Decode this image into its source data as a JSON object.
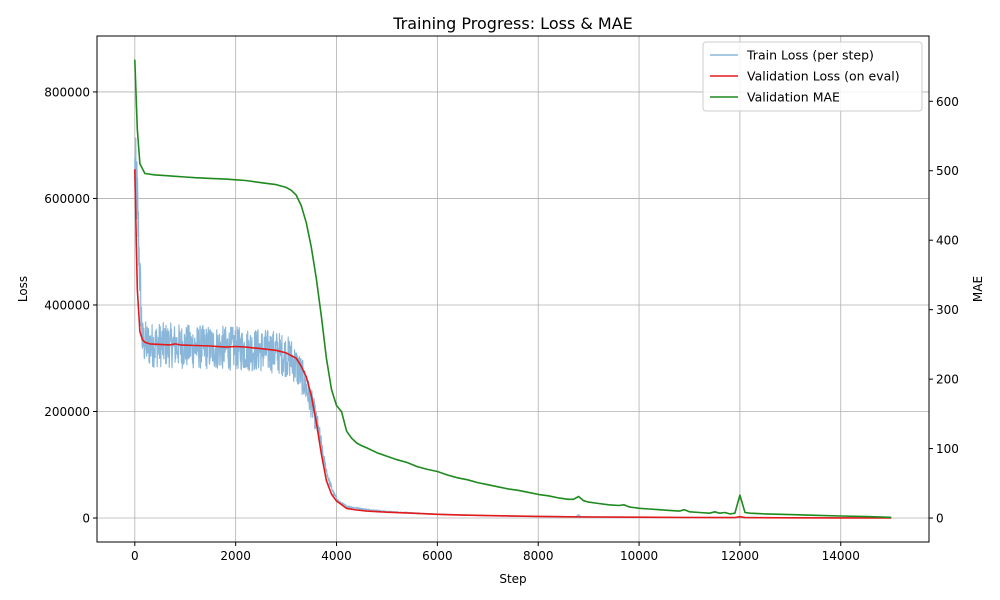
{
  "chart_data": {
    "type": "line",
    "title": "Training Progress: Loss & MAE",
    "xlabel": "Step",
    "ylabel_left": "Loss",
    "ylabel_right": "MAE",
    "xlim": [
      -750,
      15750
    ],
    "ylim_left": [
      -45000,
      905000
    ],
    "ylim_right": [
      -34.5,
      694
    ],
    "x_ticks": [
      0,
      2000,
      4000,
      6000,
      8000,
      10000,
      12000,
      14000
    ],
    "y_left_ticks": [
      0,
      200000,
      400000,
      600000,
      800000
    ],
    "y_right_ticks": [
      0,
      100,
      200,
      300,
      400,
      500,
      600
    ],
    "grid": true,
    "legend_position": "upper right",
    "colors": {
      "train_loss": "#8ab7d9",
      "val_loss": "#e31a1c",
      "val_mae": "#1f8a1f"
    },
    "series": [
      {
        "name": "Train Loss (per step)",
        "axis": "left",
        "style": "noisy",
        "x": [
          0,
          50,
          100,
          150,
          300,
          600,
          1000,
          1500,
          2000,
          2500,
          2800,
          3100,
          3300,
          3450,
          3550,
          3650,
          3750,
          3850,
          3950,
          4050,
          4200,
          4500,
          5000,
          6000,
          7000,
          8000,
          8750,
          8800,
          8850,
          10000,
          12000,
          13000,
          15000
        ],
        "values": [
          650000,
          600000,
          450000,
          330000,
          325000,
          325000,
          322000,
          320000,
          318000,
          315000,
          312000,
          300000,
          270000,
          230000,
          200000,
          160000,
          110000,
          70000,
          45000,
          30000,
          22000,
          17000,
          12000,
          7000,
          4500,
          3000,
          2500,
          6000,
          2500,
          1500,
          1000,
          700,
          500
        ]
      },
      {
        "name": "Validation Loss (on eval)",
        "axis": "left",
        "x": [
          0,
          50,
          100,
          150,
          200,
          300,
          500,
          700,
          800,
          900,
          1200,
          1500,
          1800,
          2000,
          2200,
          2400,
          2600,
          2800,
          3000,
          3100,
          3200,
          3300,
          3400,
          3500,
          3600,
          3700,
          3800,
          3900,
          4000,
          4100,
          4200,
          4400,
          4600,
          5000,
          5500,
          6000,
          6500,
          7000,
          8000,
          9000,
          10000,
          11000,
          11900,
          12000,
          12100,
          13000,
          14000,
          15000
        ],
        "values": [
          655000,
          430000,
          350000,
          335000,
          330000,
          327000,
          326000,
          325000,
          327000,
          325000,
          324000,
          323000,
          321000,
          322000,
          321000,
          319000,
          317000,
          315000,
          310000,
          305000,
          300000,
          285000,
          265000,
          230000,
          180000,
          120000,
          70000,
          45000,
          32000,
          25000,
          18000,
          15000,
          13000,
          11000,
          9000,
          7000,
          5500,
          4500,
          3000,
          2000,
          1500,
          1000,
          800,
          2500,
          800,
          500,
          300,
          200
        ]
      },
      {
        "name": "Validation MAE",
        "axis": "right",
        "x": [
          0,
          50,
          100,
          200,
          400,
          600,
          800,
          1000,
          1200,
          1500,
          1800,
          2000,
          2200,
          2400,
          2600,
          2800,
          3000,
          3100,
          3200,
          3300,
          3400,
          3500,
          3600,
          3700,
          3800,
          3900,
          4000,
          4100,
          4200,
          4300,
          4400,
          4500,
          4600,
          4800,
          5000,
          5200,
          5400,
          5600,
          5800,
          6000,
          6200,
          6400,
          6600,
          6800,
          7000,
          7200,
          7400,
          7600,
          7800,
          8000,
          8200,
          8400,
          8600,
          8700,
          8800,
          8900,
          9000,
          9200,
          9400,
          9600,
          9700,
          9800,
          10000,
          10200,
          10400,
          10600,
          10800,
          10900,
          11000,
          11200,
          11400,
          11500,
          11600,
          11700,
          11800,
          11900,
          12000,
          12100,
          12200,
          12500,
          13000,
          13500,
          14000,
          14500,
          15000
        ],
        "values": [
          660,
          560,
          510,
          496,
          494,
          493,
          492,
          491,
          490,
          489,
          488,
          487,
          486,
          484,
          482,
          480,
          476,
          472,
          465,
          450,
          425,
          390,
          345,
          290,
          230,
          185,
          162,
          153,
          125,
          115,
          108,
          104,
          101,
          94,
          89,
          84,
          80,
          74,
          70,
          67,
          62,
          58,
          55,
          51,
          48,
          45,
          42,
          40,
          37,
          34,
          32,
          29,
          27,
          27,
          31,
          25,
          23,
          21,
          19,
          18,
          19,
          16,
          14,
          13,
          12,
          11,
          10,
          12,
          9,
          8,
          7,
          9,
          7,
          8,
          6,
          7,
          33,
          8,
          7,
          6,
          5,
          4,
          3,
          2,
          1
        ]
      }
    ]
  }
}
